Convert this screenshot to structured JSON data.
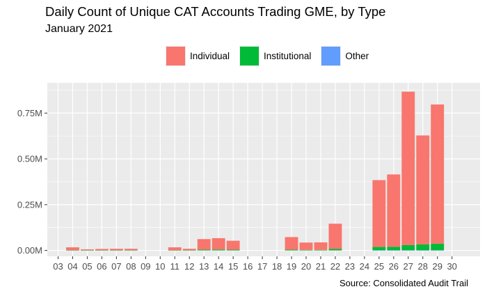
{
  "chart_data": {
    "type": "bar",
    "stacked": true,
    "title": "Daily Count of Unique CAT Accounts Trading GME, by Type",
    "subtitle": "January 2021",
    "caption": "Source: Consolidated Audit Trail",
    "xlabel": "",
    "ylabel": "",
    "ylim": [
      -0.032,
      0.915
    ],
    "y_ticks": [
      {
        "value": 0,
        "label": "0.00M"
      },
      {
        "value": 0.25,
        "label": "0.25M"
      },
      {
        "value": 0.5,
        "label": "0.50M"
      },
      {
        "value": 0.75,
        "label": "0.75M"
      }
    ],
    "x_ticks": [
      "03",
      "04",
      "05",
      "06",
      "07",
      "08",
      "09",
      "10",
      "11",
      "12",
      "13",
      "14",
      "15",
      "16",
      "17",
      "18",
      "19",
      "20",
      "21",
      "22",
      "23",
      "24",
      "25",
      "26",
      "27",
      "28",
      "29",
      "30"
    ],
    "categories": [
      "04",
      "05",
      "06",
      "07",
      "08",
      "11",
      "12",
      "13",
      "14",
      "15",
      "19",
      "20",
      "21",
      "22",
      "25",
      "26",
      "27",
      "28",
      "29"
    ],
    "series": [
      {
        "name": "Individual",
        "color": "#f8766d",
        "values": [
          0.016,
          0.005,
          0.007,
          0.008,
          0.008,
          0.016,
          0.008,
          0.058,
          0.062,
          0.049,
          0.069,
          0.04,
          0.041,
          0.138,
          0.365,
          0.395,
          0.838,
          0.595,
          0.76
        ]
      },
      {
        "name": "Institutional",
        "color": "#00ba38",
        "values": [
          0.001,
          0.001,
          0.001,
          0.001,
          0.001,
          0.001,
          0.001,
          0.004,
          0.005,
          0.004,
          0.004,
          0.003,
          0.003,
          0.008,
          0.018,
          0.019,
          0.028,
          0.032,
          0.036
        ]
      },
      {
        "name": "Other",
        "color": "#619cff",
        "values": [
          0,
          0,
          0,
          0,
          0,
          0,
          0,
          0,
          0,
          0,
          0,
          0,
          0,
          0,
          0.001,
          0.001,
          0.001,
          0.001,
          0.001
        ]
      }
    ],
    "legend_position": "top",
    "grid": true
  }
}
